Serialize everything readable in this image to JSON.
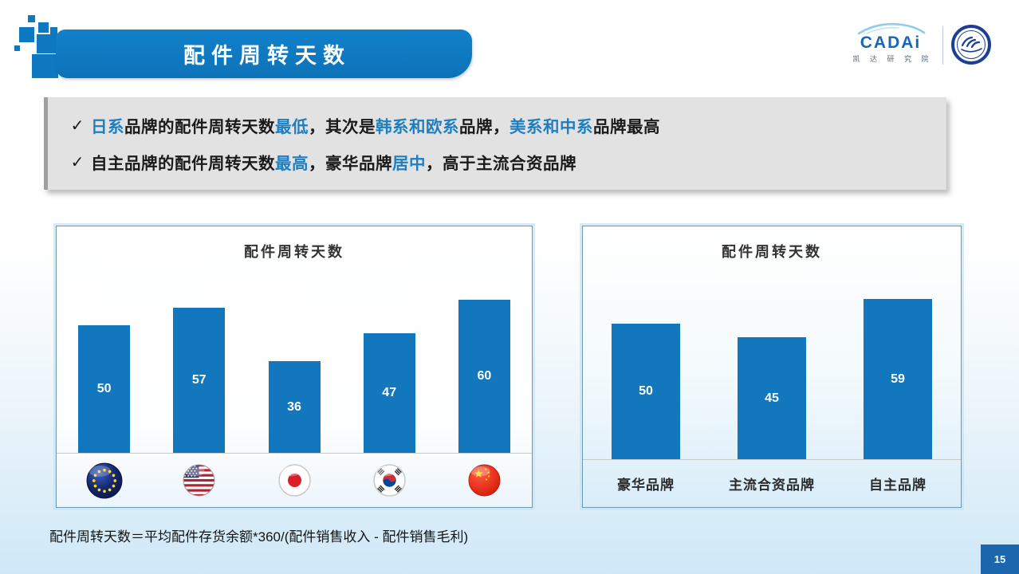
{
  "banner": {
    "title": "配件周转天数"
  },
  "logo": {
    "brand": "CADAi",
    "subtitle": "凯 达 研 究 院"
  },
  "callout": {
    "marker": "✓",
    "bullets": [
      {
        "segments": [
          {
            "text": "日系",
            "color": "blue"
          },
          {
            "text": "品牌的配件周转天数",
            "color": "dark"
          },
          {
            "text": "最低",
            "color": "blue"
          },
          {
            "text": "，其次是",
            "color": "dark"
          },
          {
            "text": "韩系和欧系",
            "color": "blue"
          },
          {
            "text": "品牌，",
            "color": "dark"
          },
          {
            "text": "美系和中系",
            "color": "blue"
          },
          {
            "text": "品牌最高",
            "color": "dark"
          }
        ]
      },
      {
        "segments": [
          {
            "text": "自主品牌的配件周转天数",
            "color": "dark"
          },
          {
            "text": "最高",
            "color": "blue"
          },
          {
            "text": "，豪华品牌",
            "color": "dark"
          },
          {
            "text": "居中",
            "color": "blue"
          },
          {
            "text": "，高于主流合资品牌",
            "color": "dark"
          }
        ]
      }
    ]
  },
  "chart_data": [
    {
      "type": "bar",
      "title": "配件周转天数",
      "category_icons": [
        "eu-flag",
        "us-flag",
        "japan-flag",
        "korea-flag",
        "china-flag"
      ],
      "values": [
        50,
        57,
        36,
        47,
        60
      ],
      "bar_color": "#1377be",
      "value_label_color": "#ffffff",
      "ylim": [
        0,
        66
      ],
      "grid": false,
      "axis": "hidden"
    },
    {
      "type": "bar",
      "title": "配件周转天数",
      "categories": [
        "豪华品牌",
        "主流合资品牌",
        "自主品牌"
      ],
      "values": [
        50,
        45,
        59
      ],
      "bar_color": "#1377be",
      "value_label_color": "#ffffff",
      "ylim": [
        0,
        66
      ],
      "grid": false,
      "axis": "hidden"
    }
  ],
  "footer": {
    "formula": "配件周转天数＝平均配件存货余额*360/(配件销售收入 - 配件销售毛利)",
    "page_number": "15"
  },
  "colors": {
    "accent_blue": "#1377be",
    "banner_blue": "#0e79c0",
    "highlight_text_blue": "#1e7fc0",
    "page_box_blue": "#1b67ae",
    "callout_gray": "#e2e2e2"
  }
}
